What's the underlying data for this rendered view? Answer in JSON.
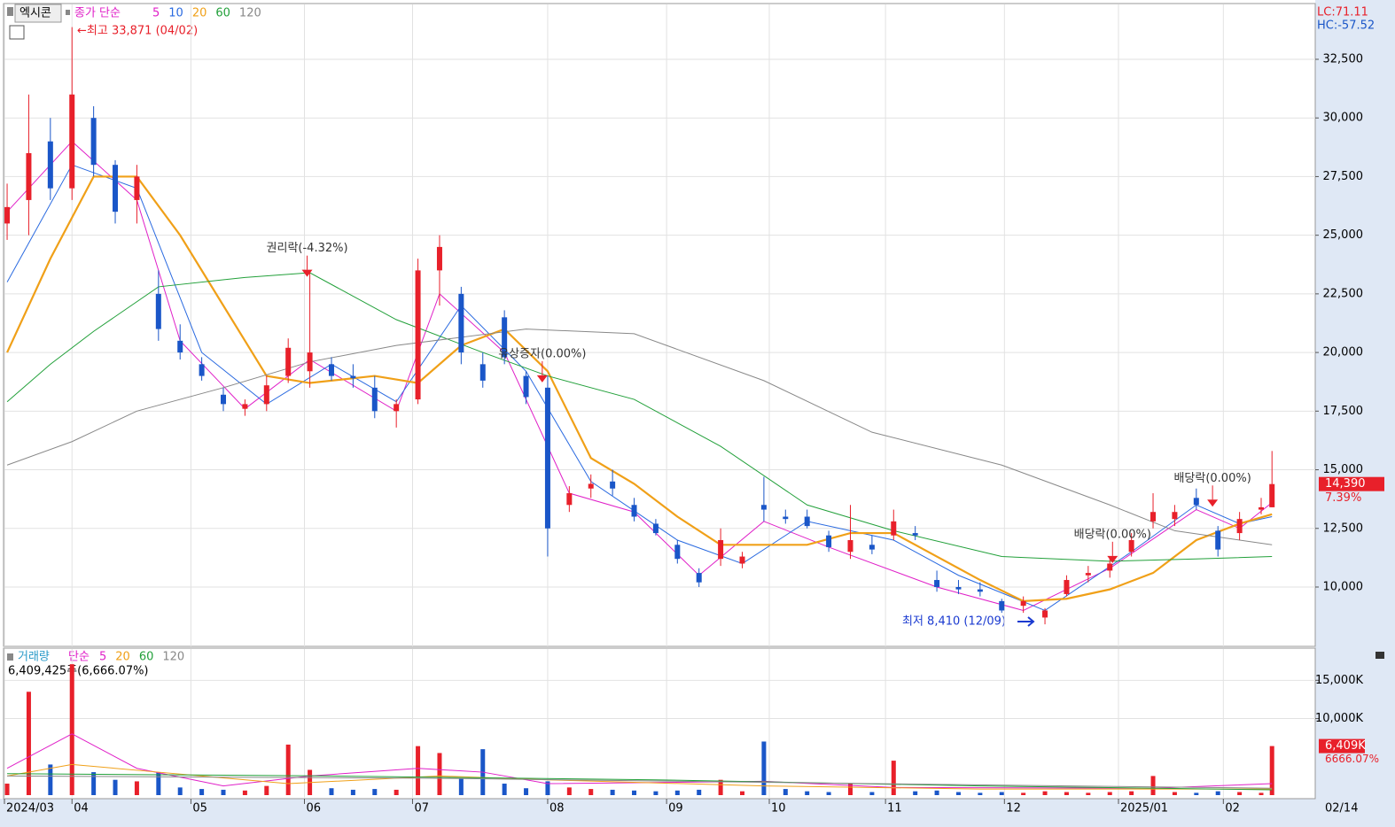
{
  "chart_data": [
    {
      "type": "candlestick",
      "title": "엑시콘",
      "ma_label": "종가 단순",
      "up_color": "#e8202a",
      "down_color": "#1a56c8",
      "x": [
        0,
        4,
        8,
        12,
        16,
        20,
        24,
        28,
        32,
        36,
        40,
        44,
        48,
        52,
        56,
        60,
        64,
        68,
        72,
        76,
        80,
        84,
        88,
        92,
        96,
        100,
        104,
        108,
        112,
        116,
        120,
        124,
        128,
        132,
        136,
        140,
        144,
        148,
        152,
        156,
        160,
        164,
        168,
        172,
        176,
        180,
        184,
        188,
        192,
        196,
        200,
        204,
        208,
        212,
        216,
        220,
        224,
        228,
        232,
        234
      ],
      "open": [
        25500,
        26500,
        29000,
        27000,
        30000,
        28000,
        26500,
        22500,
        20500,
        19500,
        18200,
        17600,
        17800,
        19000,
        19200,
        19500,
        19000,
        18500,
        17500,
        18000,
        23500,
        22500,
        19500,
        21500,
        19000,
        18500,
        13500,
        14200,
        14500,
        13500,
        12700,
        11800,
        10600,
        11200,
        11000,
        13500,
        13000,
        13000,
        12200,
        11500,
        11800,
        12200,
        12300,
        10300,
        10000,
        9900,
        9400,
        9200,
        8700,
        9700,
        10500,
        10700,
        11500,
        12800,
        12900,
        13800,
        12400,
        12300,
        13300,
        13400
      ],
      "high": [
        27200,
        31000,
        30000,
        33871,
        30500,
        28200,
        28000,
        23500,
        21200,
        19800,
        18500,
        18000,
        19000,
        20600,
        23500,
        19800,
        19500,
        19000,
        18000,
        24000,
        25000,
        22800,
        20000,
        21800,
        19200,
        19000,
        14300,
        14800,
        15000,
        13800,
        12900,
        12000,
        10800,
        12500,
        11500,
        14700,
        13300,
        13300,
        12400,
        13500,
        12200,
        13300,
        12600,
        10700,
        10300,
        10200,
        9500,
        9600,
        9100,
        10500,
        10900,
        11300,
        12300,
        14000,
        13500,
        14200,
        12600,
        13200,
        13800,
        15800
      ],
      "low": [
        24800,
        25000,
        26500,
        26500,
        27500,
        25500,
        25500,
        20500,
        19700,
        18800,
        17500,
        17300,
        17500,
        18700,
        18500,
        18800,
        18500,
        17200,
        16800,
        17800,
        22000,
        19500,
        18500,
        19500,
        17800,
        11300,
        13200,
        13800,
        13900,
        12800,
        12200,
        11000,
        10000,
        10900,
        10800,
        12800,
        12700,
        12500,
        11500,
        11200,
        11400,
        12000,
        12000,
        9800,
        9700,
        9600,
        8900,
        8900,
        8410,
        9600,
        10200,
        10400,
        11300,
        12500,
        12600,
        13300,
        11300,
        12000,
        13100,
        13400
      ],
      "close": [
        26200,
        28500,
        27000,
        31000,
        28000,
        26000,
        27500,
        21000,
        20000,
        19000,
        17800,
        17800,
        18600,
        20200,
        20000,
        19000,
        18900,
        17500,
        17800,
        23500,
        24500,
        20000,
        18800,
        19800,
        18100,
        12500,
        14000,
        14400,
        14200,
        13000,
        12300,
        11200,
        10200,
        12000,
        11300,
        13300,
        12900,
        12600,
        11700,
        12000,
        11600,
        12800,
        12200,
        10000,
        9900,
        9800,
        9000,
        9400,
        9000,
        10300,
        10600,
        11000,
        12000,
        13200,
        13200,
        13500,
        11600,
        12900,
        13400,
        14390
      ],
      "series": [
        {
          "name": "5",
          "color": "#e020c8",
          "x": [
            0,
            12,
            24,
            32,
            44,
            56,
            72,
            80,
            92,
            104,
            116,
            128,
            140,
            152,
            172,
            188,
            204,
            220,
            228,
            234
          ],
          "values": [
            26000,
            29000,
            26500,
            20500,
            17600,
            19700,
            17500,
            22500,
            20000,
            14000,
            13200,
            10500,
            12800,
            11700,
            10000,
            9000,
            10800,
            13300,
            12500,
            13600
          ]
        },
        {
          "name": "10",
          "color": "#2a6ae0",
          "x": [
            0,
            12,
            24,
            36,
            48,
            60,
            72,
            84,
            96,
            108,
            124,
            136,
            148,
            164,
            176,
            192,
            208,
            220,
            228,
            234
          ],
          "values": [
            23000,
            28000,
            27000,
            20000,
            17800,
            19500,
            17900,
            22000,
            19200,
            14500,
            12000,
            11000,
            12800,
            12000,
            10500,
            9000,
            11500,
            13500,
            12700,
            13000
          ]
        },
        {
          "name": "20",
          "color": "#f0a018",
          "x": [
            0,
            8,
            16,
            24,
            32,
            40,
            48,
            56,
            68,
            76,
            84,
            92,
            100,
            108,
            116,
            124,
            132,
            140,
            148,
            156,
            164,
            172,
            180,
            188,
            196,
            204,
            212,
            220,
            228,
            234
          ],
          "values": [
            20000,
            24000,
            27500,
            27500,
            25000,
            22000,
            19000,
            18700,
            19000,
            18700,
            20300,
            21000,
            19200,
            15500,
            14400,
            13000,
            11800,
            11800,
            11800,
            12300,
            12300,
            11300,
            10300,
            9400,
            9500,
            9900,
            10600,
            12000,
            12700,
            13100
          ]
        },
        {
          "name": "60",
          "color": "#22a03a",
          "x": [
            0,
            8,
            16,
            28,
            44,
            56,
            72,
            88,
            100,
            116,
            132,
            148,
            164,
            184,
            204,
            220,
            234
          ],
          "values": [
            17900,
            19500,
            20900,
            22800,
            23200,
            23400,
            21400,
            20000,
            19000,
            18000,
            16000,
            13500,
            12400,
            11300,
            11100,
            11200,
            11300
          ]
        },
        {
          "name": "120",
          "color": "#888888",
          "x": [
            0,
            12,
            24,
            40,
            56,
            72,
            96,
            116,
            140,
            160,
            184,
            204,
            216,
            234
          ],
          "values": [
            15200,
            16200,
            17500,
            18500,
            19600,
            20300,
            21000,
            20800,
            18800,
            16600,
            15200,
            13500,
            12400,
            11800
          ]
        }
      ],
      "xlim": [
        -0.5,
        242
      ],
      "ylim": [
        7470,
        34840
      ],
      "yticks": [
        {
          "value": 10000,
          "label": "10,000"
        },
        {
          "value": 12500,
          "label": "12,500"
        },
        {
          "value": 15000,
          "label": "15,000"
        },
        {
          "value": 17500,
          "label": "17,500"
        },
        {
          "value": 20000,
          "label": "20,000"
        },
        {
          "value": 22500,
          "label": "22,500"
        },
        {
          "value": 25000,
          "label": "25,000"
        },
        {
          "value": 27500,
          "label": "27,500"
        },
        {
          "value": 30000,
          "label": "30,000"
        },
        {
          "value": 32500,
          "label": "32,500"
        }
      ],
      "xticks": [
        {
          "value": -0.5,
          "label": "2024/03"
        },
        {
          "value": 12,
          "label": "04"
        },
        {
          "value": 34,
          "label": "05"
        },
        {
          "value": 55,
          "label": "06"
        },
        {
          "value": 75,
          "label": "07"
        },
        {
          "value": 100,
          "label": "08"
        },
        {
          "value": 122,
          "label": "09"
        },
        {
          "value": 141,
          "label": "10"
        },
        {
          "value": 162.5,
          "label": "11"
        },
        {
          "value": 184.5,
          "label": "12"
        },
        {
          "value": 205.6,
          "label": "2025/01"
        },
        {
          "value": 225,
          "label": "02"
        }
      ],
      "last_date": "02/14",
      "annotations": [
        {
          "text": "권리락(-4.32%)",
          "x": 55.5,
          "value": 23300
        },
        {
          "text": "유상증자(0.00%)",
          "x": 99,
          "value": 18800
        },
        {
          "text": "배당락(0.00%)",
          "x": 204.5,
          "value": 11100
        },
        {
          "text": "배당락(0.00%)",
          "x": 223,
          "value": 13500
        }
      ],
      "high_label": "←최고 33,871 (04/02)",
      "low_label": "최저 8,410 (12/09)",
      "lc_label": "LC:71.11",
      "hc_label": "HC:-57.52",
      "current_label": "14,390",
      "change_label": "7.39%"
    },
    {
      "type": "bar",
      "title": "거래량",
      "ma_label": "단순",
      "info": "6,409,425주(6,666.07%)",
      "values": [
        1500,
        13500,
        4000,
        17100,
        3000,
        2000,
        1800,
        3000,
        1000,
        800,
        700,
        600,
        1200,
        6600,
        3300,
        900,
        700,
        800,
        700,
        6400,
        5500,
        2200,
        6000,
        1500,
        900,
        1800,
        1000,
        800,
        700,
        600,
        500,
        600,
        700,
        2000,
        500,
        7000,
        800,
        500,
        400,
        1500,
        400,
        4500,
        500,
        600,
        400,
        300,
        400,
        300,
        500,
        400,
        300,
        400,
        500,
        2500,
        400,
        300,
        500,
        400,
        300,
        6409
      ],
      "series": [
        {
          "name": "5",
          "color": "#e020c8",
          "x": [
            0,
            12,
            24,
            40,
            56,
            76,
            88,
            100,
            140,
            164,
            212,
            234
          ],
          "values": [
            3500,
            8000,
            3500,
            1200,
            2500,
            3500,
            3000,
            1500,
            1800,
            1000,
            900,
            1500
          ]
        },
        {
          "name": "20",
          "color": "#f0a018",
          "x": [
            0,
            12,
            28,
            52,
            80,
            100,
            140,
            180,
            234
          ],
          "values": [
            2500,
            4000,
            3000,
            1500,
            2500,
            2000,
            1200,
            800,
            800
          ]
        },
        {
          "name": "60",
          "color": "#22a03a",
          "x": [
            0,
            60,
            120,
            180,
            234
          ],
          "values": [
            2800,
            2500,
            2000,
            1200,
            700
          ]
        },
        {
          "name": "120",
          "color": "#888888",
          "x": [
            0,
            80,
            160,
            234
          ],
          "values": [
            2500,
            2200,
            1500,
            900
          ]
        }
      ],
      "ylim": [
        0,
        19200
      ],
      "yticks": [
        {
          "value": 10000,
          "label": "10,000K"
        },
        {
          "value": 15000,
          "label": "15,000K"
        }
      ],
      "current_label": "6,409K",
      "change_label": "6666.07%"
    }
  ]
}
